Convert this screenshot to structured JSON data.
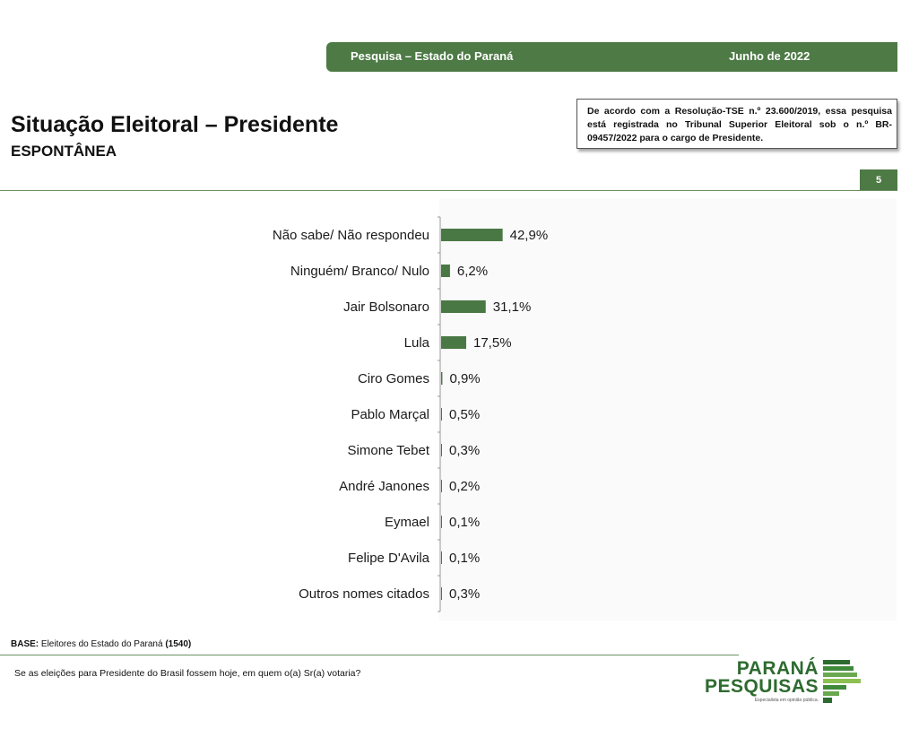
{
  "header": {
    "survey_title": "Pesquisa – Estado do Paraná",
    "date": "Junho de 2022"
  },
  "title": "Situação Eleitoral – Presidente",
  "subtitle": "ESPONTÂNEA",
  "tse_notice": "De acordo com a Resolução-TSE n.º 23.600/2019, essa pesquisa está registrada no Tribunal Superior Eleitoral sob o n.º BR-09457/2022 para o cargo de Presidente.",
  "page_number": "5",
  "footer": {
    "base_label": "BASE:",
    "base_text": "Eleitores do Estado do Paraná",
    "base_count": "(1540)",
    "question": "Se as eleições para Presidente do Brasil fossem hoje, em quem o(a) Sr(a) votaria?"
  },
  "logo": {
    "line1": "PARANÁ",
    "line2": "PESQUISAS",
    "tagline": "Especialista em opinião pública."
  },
  "colors": {
    "brand_green": "#4d7a45",
    "bar_green": "#4a7844"
  },
  "chart_data": {
    "type": "bar",
    "orientation": "horizontal",
    "categories": [
      "Não sabe/ Não respondeu",
      "Ninguém/ Branco/ Nulo",
      "Jair Bolsonaro",
      "Lula",
      "Ciro Gomes",
      "Pablo Marçal",
      "Simone Tebet",
      "André Janones",
      "Eymael",
      "Felipe D'Avila",
      "Outros nomes citados"
    ],
    "values": [
      42.9,
      6.2,
      31.1,
      17.5,
      0.9,
      0.5,
      0.3,
      0.2,
      0.1,
      0.1,
      0.3
    ],
    "value_labels": [
      "42,9%",
      "6,2%",
      "31,1%",
      "17,5%",
      "0,9%",
      "0,5%",
      "0,3%",
      "0,2%",
      "0,1%",
      "0,1%",
      "0,3%"
    ],
    "xlim": [
      0,
      100
    ],
    "grid": false,
    "legend": "none"
  }
}
